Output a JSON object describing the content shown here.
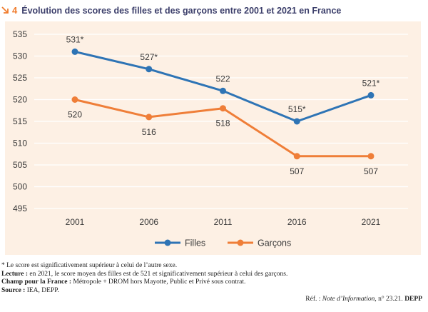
{
  "figure": {
    "number": "4",
    "title": "Évolution des scores des filles et des garçons entre 2001 et 2021 en France",
    "colors": {
      "accent": "#f07d2e",
      "title": "#3c3f6b",
      "panel": "#fdf0e4",
      "grid": "#ffffff"
    }
  },
  "chart_data": {
    "type": "line",
    "categories": [
      "2001",
      "2006",
      "2011",
      "2016",
      "2021"
    ],
    "ylim": [
      495,
      535
    ],
    "yticks": [
      495,
      500,
      505,
      510,
      515,
      520,
      525,
      530,
      535
    ],
    "grid": true,
    "legend_position": "bottom",
    "series": [
      {
        "name": "Filles",
        "color": "#2e74b5",
        "values": [
          531,
          527,
          522,
          515,
          521
        ],
        "labels": [
          "531*",
          "527*",
          "522",
          "515*",
          "521*"
        ],
        "label_position": "above"
      },
      {
        "name": "Garçons",
        "color": "#ef7e38",
        "values": [
          520,
          516,
          518,
          507,
          507
        ],
        "labels": [
          "520",
          "516",
          "518",
          "507",
          "507"
        ],
        "label_position": "below"
      }
    ]
  },
  "notes": {
    "asterisk": "* Le score est significativement supérieur à celui de l’autre sexe.",
    "lecture_label": "Lecture :",
    "lecture_text": " en 2021, le score moyen des filles est de 521 et significativement supérieur à celui des garçons.",
    "champ_label": "Champ pour la France :",
    "champ_text": " Métropole + DROM hors Mayotte, Public et Privé sous contrat.",
    "source_label": "Source :",
    "source_text": " IEA, DEPP."
  },
  "reference": {
    "prefix": "Réf. : ",
    "publication": "Note d’Information",
    "number": ", n° 23.21. ",
    "org": "DEPP"
  }
}
